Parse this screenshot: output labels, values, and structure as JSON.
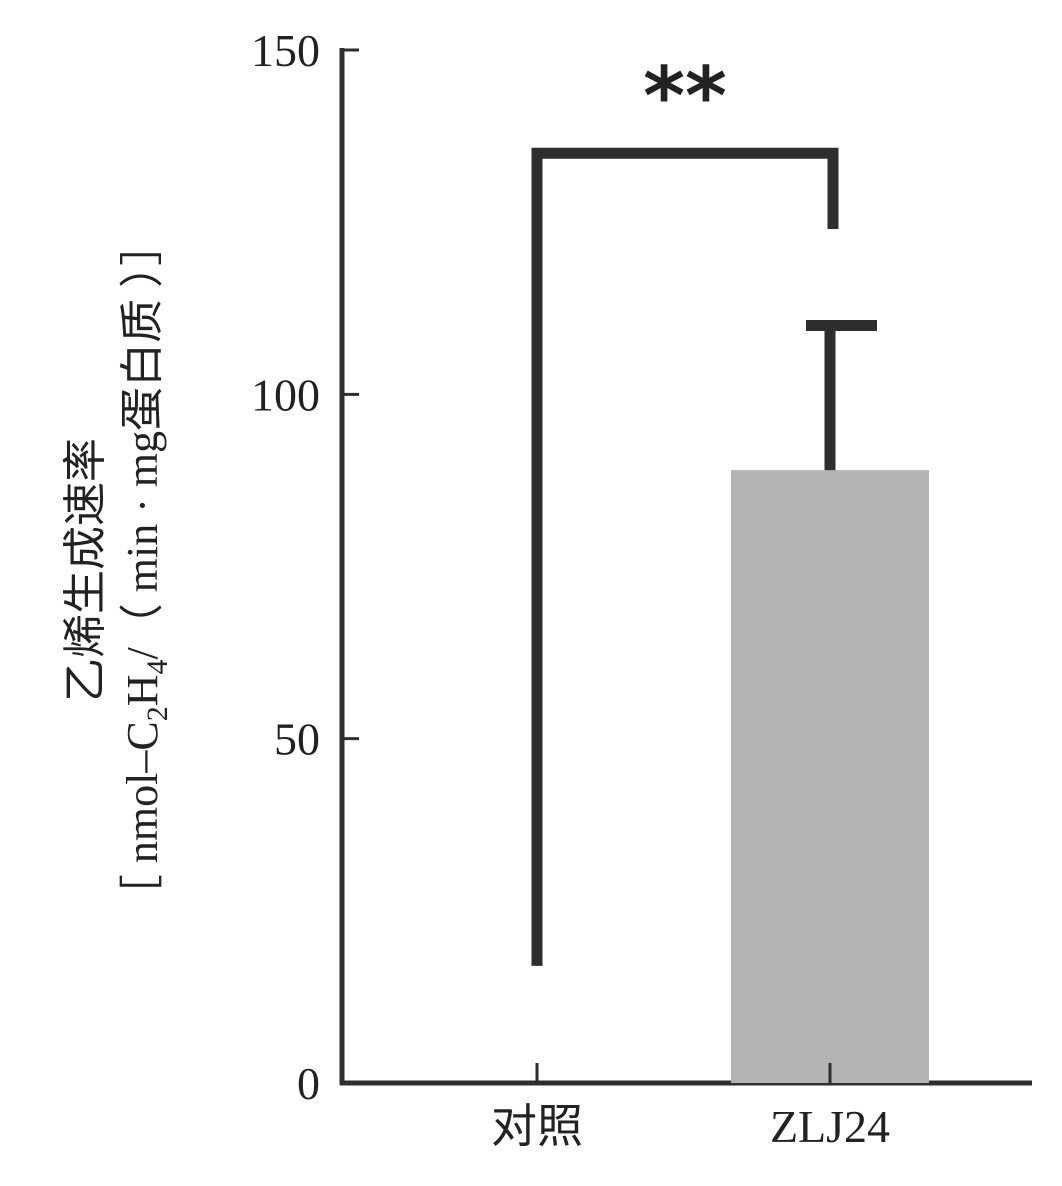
{
  "chart_data": {
    "type": "bar",
    "categories": [
      "对照",
      "ZLJ24"
    ],
    "values": [
      0,
      89
    ],
    "error_upper": [
      null,
      110
    ],
    "ylim": [
      0,
      150
    ],
    "yticks": [
      0,
      50,
      100,
      150
    ],
    "ylabel": {
      "line1": "乙烯生成速率",
      "line2_parts": [
        "［ nmol–C",
        "2",
        "H",
        "4",
        "/（ min · mg蛋白质 ）］"
      ]
    },
    "significance": {
      "label": "**",
      "between": [
        "对照",
        "ZLJ24"
      ],
      "bracket_top": 135,
      "left_foot": 17,
      "right_foot": 124
    },
    "colors": {
      "bar": "#b3b3b3",
      "axis": "#2e2e2e",
      "text": "#222222"
    },
    "grid": false
  }
}
